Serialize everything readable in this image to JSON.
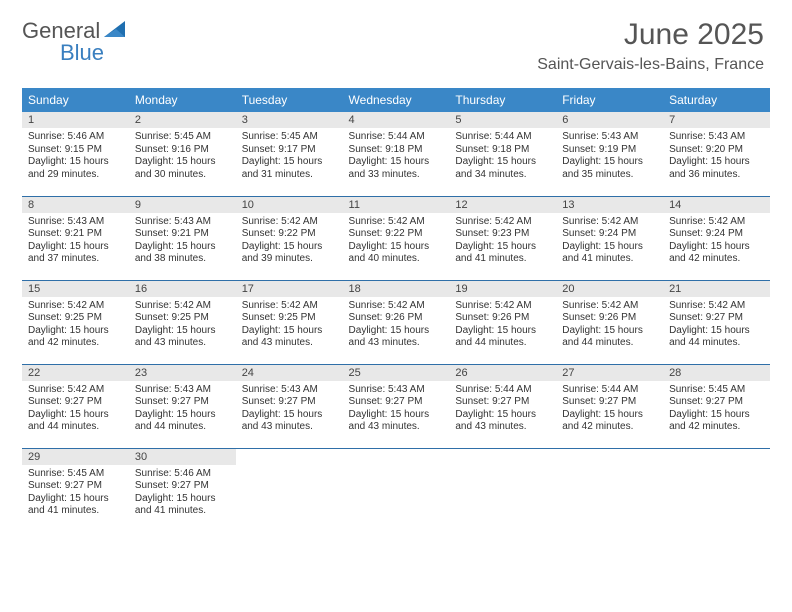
{
  "brand": {
    "part1": "General",
    "part2": "Blue"
  },
  "title": "June 2025",
  "location": "Saint-Gervais-les-Bains, France",
  "colors": {
    "header_bg": "#3a87c7",
    "header_text": "#ffffff",
    "daynum_bg": "#e8e8e8",
    "row_border": "#2f6fa8",
    "brand_gray": "#555555",
    "brand_blue": "#3a7fbf"
  },
  "weekdays": [
    "Sunday",
    "Monday",
    "Tuesday",
    "Wednesday",
    "Thursday",
    "Friday",
    "Saturday"
  ],
  "weeks": [
    [
      {
        "n": "1",
        "sr": "5:46 AM",
        "ss": "9:15 PM",
        "dl": "15 hours and 29 minutes."
      },
      {
        "n": "2",
        "sr": "5:45 AM",
        "ss": "9:16 PM",
        "dl": "15 hours and 30 minutes."
      },
      {
        "n": "3",
        "sr": "5:45 AM",
        "ss": "9:17 PM",
        "dl": "15 hours and 31 minutes."
      },
      {
        "n": "4",
        "sr": "5:44 AM",
        "ss": "9:18 PM",
        "dl": "15 hours and 33 minutes."
      },
      {
        "n": "5",
        "sr": "5:44 AM",
        "ss": "9:18 PM",
        "dl": "15 hours and 34 minutes."
      },
      {
        "n": "6",
        "sr": "5:43 AM",
        "ss": "9:19 PM",
        "dl": "15 hours and 35 minutes."
      },
      {
        "n": "7",
        "sr": "5:43 AM",
        "ss": "9:20 PM",
        "dl": "15 hours and 36 minutes."
      }
    ],
    [
      {
        "n": "8",
        "sr": "5:43 AM",
        "ss": "9:21 PM",
        "dl": "15 hours and 37 minutes."
      },
      {
        "n": "9",
        "sr": "5:43 AM",
        "ss": "9:21 PM",
        "dl": "15 hours and 38 minutes."
      },
      {
        "n": "10",
        "sr": "5:42 AM",
        "ss": "9:22 PM",
        "dl": "15 hours and 39 minutes."
      },
      {
        "n": "11",
        "sr": "5:42 AM",
        "ss": "9:22 PM",
        "dl": "15 hours and 40 minutes."
      },
      {
        "n": "12",
        "sr": "5:42 AM",
        "ss": "9:23 PM",
        "dl": "15 hours and 41 minutes."
      },
      {
        "n": "13",
        "sr": "5:42 AM",
        "ss": "9:24 PM",
        "dl": "15 hours and 41 minutes."
      },
      {
        "n": "14",
        "sr": "5:42 AM",
        "ss": "9:24 PM",
        "dl": "15 hours and 42 minutes."
      }
    ],
    [
      {
        "n": "15",
        "sr": "5:42 AM",
        "ss": "9:25 PM",
        "dl": "15 hours and 42 minutes."
      },
      {
        "n": "16",
        "sr": "5:42 AM",
        "ss": "9:25 PM",
        "dl": "15 hours and 43 minutes."
      },
      {
        "n": "17",
        "sr": "5:42 AM",
        "ss": "9:25 PM",
        "dl": "15 hours and 43 minutes."
      },
      {
        "n": "18",
        "sr": "5:42 AM",
        "ss": "9:26 PM",
        "dl": "15 hours and 43 minutes."
      },
      {
        "n": "19",
        "sr": "5:42 AM",
        "ss": "9:26 PM",
        "dl": "15 hours and 44 minutes."
      },
      {
        "n": "20",
        "sr": "5:42 AM",
        "ss": "9:26 PM",
        "dl": "15 hours and 44 minutes."
      },
      {
        "n": "21",
        "sr": "5:42 AM",
        "ss": "9:27 PM",
        "dl": "15 hours and 44 minutes."
      }
    ],
    [
      {
        "n": "22",
        "sr": "5:42 AM",
        "ss": "9:27 PM",
        "dl": "15 hours and 44 minutes."
      },
      {
        "n": "23",
        "sr": "5:43 AM",
        "ss": "9:27 PM",
        "dl": "15 hours and 44 minutes."
      },
      {
        "n": "24",
        "sr": "5:43 AM",
        "ss": "9:27 PM",
        "dl": "15 hours and 43 minutes."
      },
      {
        "n": "25",
        "sr": "5:43 AM",
        "ss": "9:27 PM",
        "dl": "15 hours and 43 minutes."
      },
      {
        "n": "26",
        "sr": "5:44 AM",
        "ss": "9:27 PM",
        "dl": "15 hours and 43 minutes."
      },
      {
        "n": "27",
        "sr": "5:44 AM",
        "ss": "9:27 PM",
        "dl": "15 hours and 42 minutes."
      },
      {
        "n": "28",
        "sr": "5:45 AM",
        "ss": "9:27 PM",
        "dl": "15 hours and 42 minutes."
      }
    ],
    [
      {
        "n": "29",
        "sr": "5:45 AM",
        "ss": "9:27 PM",
        "dl": "15 hours and 41 minutes."
      },
      {
        "n": "30",
        "sr": "5:46 AM",
        "ss": "9:27 PM",
        "dl": "15 hours and 41 minutes."
      },
      null,
      null,
      null,
      null,
      null
    ]
  ],
  "labels": {
    "sunrise": "Sunrise:",
    "sunset": "Sunset:",
    "daylight": "Daylight:"
  }
}
